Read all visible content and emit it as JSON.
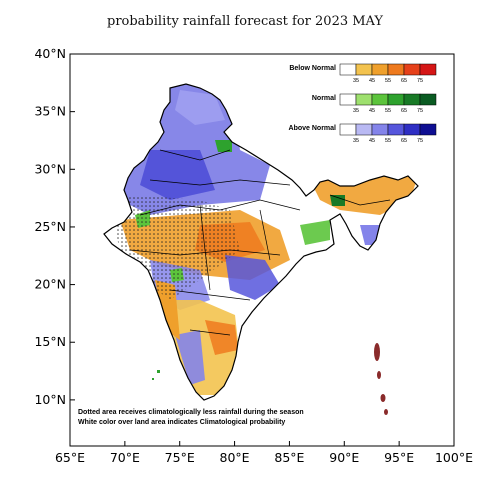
{
  "title": "probability rainfall forecast for 2023 MAY",
  "axes": {
    "lon_labels": [
      "65°E",
      "70°E",
      "75°E",
      "80°E",
      "85°E",
      "90°E",
      "95°E",
      "100°E"
    ],
    "lon_values": [
      65,
      70,
      75,
      80,
      85,
      90,
      95,
      100
    ],
    "lat_labels": [
      "40°N",
      "35°N",
      "30°N",
      "25°N",
      "20°N",
      "15°N",
      "10°N"
    ],
    "lat_values": [
      40,
      35,
      30,
      25,
      20,
      15,
      10
    ],
    "lon_range": [
      65,
      100
    ],
    "lat_range": [
      6,
      40
    ]
  },
  "legend": [
    {
      "title": "Below Normal",
      "colors": [
        "#ffffff",
        "#f3c34f",
        "#efa02c",
        "#ee7a1e",
        "#e6411a",
        "#d51616"
      ],
      "ticks": [
        "35",
        "45",
        "55",
        "65",
        "75"
      ]
    },
    {
      "title": "Normal",
      "colors": [
        "#ffffff",
        "#9ee06e",
        "#5cc43c",
        "#2ea22e",
        "#187a26",
        "#0a5b22"
      ],
      "ticks": [
        "35",
        "45",
        "55",
        "65",
        "75"
      ]
    },
    {
      "title": "Above Normal",
      "colors": [
        "#ffffff",
        "#b9b9f3",
        "#8484ea",
        "#5656dc",
        "#2f2fc4",
        "#0f0f92"
      ],
      "ticks": [
        "35",
        "45",
        "55",
        "65",
        "75"
      ]
    }
  ],
  "notes": [
    "Dotted area receives climatologically less rainfall during the season",
    "White color over land area indicates Climatological probability"
  ]
}
